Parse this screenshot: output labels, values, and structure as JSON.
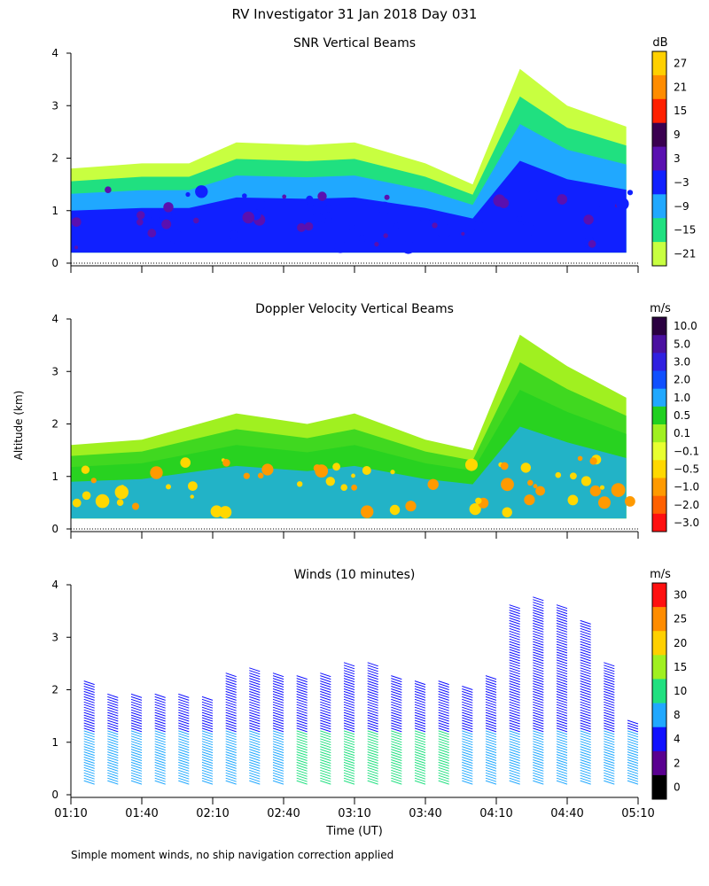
{
  "figure": {
    "title": "RV Investigator  31 Jan 2018 Day 031",
    "y_axis_label": "Altitude (km)",
    "x_axis_label": "Time (UT)",
    "footnote": "Simple moment winds, no ship navigation correction applied"
  },
  "chart_data": [
    {
      "type": "heatmap",
      "title": "SNR Vertical Beams",
      "xlabel": "",
      "ylabel": "Altitude (km)",
      "x_ticks": [
        "01:10",
        "01:40",
        "02:10",
        "02:40",
        "03:10",
        "03:40",
        "04:10",
        "04:40",
        "05:10"
      ],
      "y_ticks": [
        "0",
        "1",
        "2",
        "3",
        "4"
      ],
      "ylim": [
        0,
        4
      ],
      "colorbar": {
        "unit": "dB",
        "labels": [
          "27",
          "21",
          "15",
          "9",
          "3",
          "−3",
          "−9",
          "−15",
          "−21"
        ],
        "colors": [
          "#ffd000",
          "#ff8c00",
          "#ff2000",
          "#3a0050",
          "#5a10b0",
          "#1020ff",
          "#20a8ff",
          "#20e080",
          "#c8ff40"
        ]
      },
      "echo_top_km": [
        {
          "time": "01:10",
          "top": 1.8
        },
        {
          "time": "01:40",
          "top": 1.9
        },
        {
          "time": "02:00",
          "top": 1.9
        },
        {
          "time": "02:20",
          "top": 2.3
        },
        {
          "time": "02:50",
          "top": 2.25
        },
        {
          "time": "03:10",
          "top": 2.3
        },
        {
          "time": "03:40",
          "top": 1.9
        },
        {
          "time": "04:00",
          "top": 1.5
        },
        {
          "time": "04:20",
          "top": 3.7
        },
        {
          "time": "04:40",
          "top": 3.0
        },
        {
          "time": "05:05",
          "top": 2.6
        }
      ]
    },
    {
      "type": "heatmap",
      "title": "Doppler Velocity Vertical Beams",
      "xlabel": "",
      "ylabel": "Altitude (km)",
      "x_ticks": [
        "01:10",
        "01:40",
        "02:10",
        "02:40",
        "03:10",
        "03:40",
        "04:10",
        "04:40",
        "05:10"
      ],
      "y_ticks": [
        "0",
        "1",
        "2",
        "3",
        "4"
      ],
      "ylim": [
        0,
        4
      ],
      "colorbar": {
        "unit": "m/s",
        "labels": [
          "10.0",
          "5.0",
          "3.0",
          "2.0",
          "1.0",
          "0.5",
          "0.1",
          "−0.1",
          "−0.5",
          "−1.0",
          "−2.0",
          "−3.0"
        ],
        "colors": [
          "#2a0040",
          "#4a10a0",
          "#3020e0",
          "#1050ff",
          "#20a8ff",
          "#20d020",
          "#a0f020",
          "#e8ff30",
          "#ffd800",
          "#ff9a00",
          "#ff6000",
          "#ff1010"
        ]
      },
      "echo_top_km": [
        {
          "time": "01:10",
          "top": 1.6
        },
        {
          "time": "01:40",
          "top": 1.7
        },
        {
          "time": "02:20",
          "top": 2.2
        },
        {
          "time": "02:50",
          "top": 2.0
        },
        {
          "time": "03:10",
          "top": 2.2
        },
        {
          "time": "03:40",
          "top": 1.7
        },
        {
          "time": "04:00",
          "top": 1.5
        },
        {
          "time": "04:20",
          "top": 3.7
        },
        {
          "time": "04:40",
          "top": 3.1
        },
        {
          "time": "05:05",
          "top": 2.5
        }
      ]
    },
    {
      "type": "scatter",
      "title": "Winds (10 minutes)",
      "xlabel": "Time (UT)",
      "ylabel": "",
      "x_ticks": [
        "01:10",
        "01:40",
        "02:10",
        "02:40",
        "03:10",
        "03:40",
        "04:10",
        "04:40",
        "05:10"
      ],
      "y_ticks": [
        "0",
        "1",
        "2",
        "3",
        "4"
      ],
      "ylim": [
        0,
        4
      ],
      "colorbar": {
        "unit": "m/s",
        "labels": [
          "30",
          "25",
          "20",
          "15",
          "10",
          "8",
          "4",
          "2",
          "0"
        ],
        "colors": [
          "#ff1010",
          "#ff8c00",
          "#ffd000",
          "#a0f020",
          "#20e080",
          "#20a8ff",
          "#1010ff",
          "#5a0090",
          "#000000"
        ]
      },
      "profiles": [
        {
          "time": "01:20",
          "top": 2.1
        },
        {
          "time": "01:30",
          "top": 1.9
        },
        {
          "time": "01:40",
          "top": 1.9
        },
        {
          "time": "01:50",
          "top": 1.9
        },
        {
          "time": "02:00",
          "top": 1.9
        },
        {
          "time": "02:10",
          "top": 1.8
        },
        {
          "time": "02:20",
          "top": 2.3
        },
        {
          "time": "02:30",
          "top": 2.4
        },
        {
          "time": "02:40",
          "top": 2.3
        },
        {
          "time": "02:50",
          "top": 2.2
        },
        {
          "time": "03:00",
          "top": 2.3
        },
        {
          "time": "03:10",
          "top": 2.5
        },
        {
          "time": "03:20",
          "top": 2.5
        },
        {
          "time": "03:30",
          "top": 2.2
        },
        {
          "time": "03:40",
          "top": 2.1
        },
        {
          "time": "03:50",
          "top": 2.1
        },
        {
          "time": "04:00",
          "top": 2.0
        },
        {
          "time": "04:10",
          "top": 2.2
        },
        {
          "time": "04:20",
          "top": 3.6
        },
        {
          "time": "04:30",
          "top": 3.7
        },
        {
          "time": "04:40",
          "top": 3.6
        },
        {
          "time": "04:50",
          "top": 3.3
        },
        {
          "time": "05:00",
          "top": 2.5
        },
        {
          "time": "05:10",
          "top": 1.4
        }
      ]
    }
  ]
}
